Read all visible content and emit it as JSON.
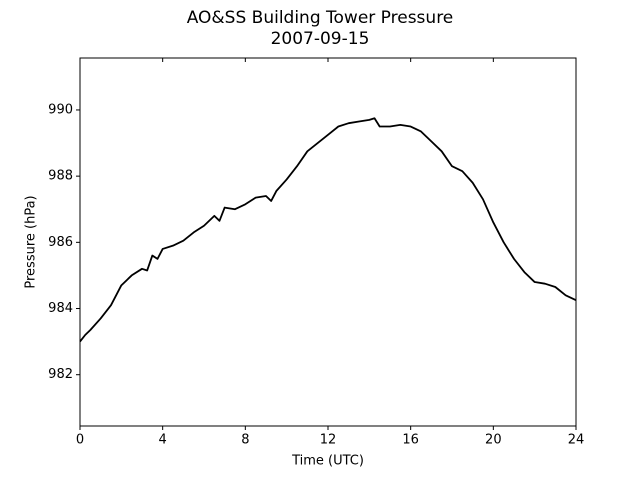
{
  "chart_data": {
    "type": "line",
    "title": "AO&SS Building Tower Pressure",
    "subtitle": "2007-09-15",
    "xlabel": "Time (UTC)",
    "ylabel": "Pressure (hPa)",
    "x": [
      0,
      0.25,
      0.5,
      1,
      1.5,
      2,
      2.5,
      3,
      3.25,
      3.5,
      3.75,
      4,
      4.5,
      5,
      5.5,
      6,
      6.5,
      6.75,
      7,
      7.5,
      8,
      8.5,
      9,
      9.25,
      9.5,
      10,
      10.5,
      11,
      11.5,
      12,
      12.5,
      13,
      13.5,
      14,
      14.25,
      14.5,
      15,
      15.5,
      16,
      16.5,
      17,
      17.5,
      18,
      18.5,
      19,
      19.5,
      20,
      20.5,
      21,
      21.5,
      22,
      22.5,
      23,
      23.5,
      24
    ],
    "series": [
      {
        "name": "Pressure",
        "color": "#000000",
        "values": [
          983.0,
          983.2,
          983.35,
          983.7,
          984.1,
          984.7,
          985.0,
          985.2,
          985.15,
          985.6,
          985.5,
          985.8,
          985.9,
          986.05,
          986.3,
          986.5,
          986.8,
          986.65,
          987.05,
          987.0,
          987.15,
          987.35,
          987.4,
          987.25,
          987.55,
          987.9,
          988.3,
          988.75,
          989.0,
          989.25,
          989.5,
          989.6,
          989.65,
          989.7,
          989.75,
          989.5,
          989.5,
          989.55,
          989.5,
          989.35,
          989.05,
          988.75,
          988.3,
          988.15,
          987.8,
          987.3,
          986.6,
          986.0,
          985.5,
          985.1,
          984.8,
          984.75,
          984.65,
          984.4,
          984.25
        ]
      }
    ],
    "xlim": [
      0,
      24
    ],
    "xticks": [
      0,
      4,
      8,
      12,
      16,
      20,
      24
    ],
    "ylim": [
      980.45,
      991.57
    ],
    "yticks": [
      982,
      984,
      986,
      988,
      990
    ],
    "grid": false
  }
}
